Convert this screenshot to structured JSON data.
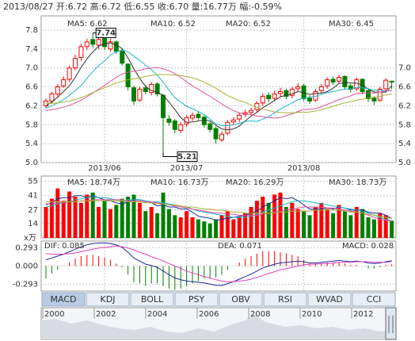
{
  "header": "2013/08/27 开:6.72 高:6.72 低:6.55 收:6.70 量:16.77万 幅:-0.59%",
  "chart_data": [
    {
      "type": "candlestick",
      "categories": [
        null,
        null,
        null,
        null,
        null,
        null,
        null,
        null,
        null,
        null,
        "2013/06",
        null,
        null,
        null,
        null,
        null,
        null,
        null,
        null,
        null,
        null,
        null,
        null,
        null,
        "2013/07",
        null,
        null,
        null,
        null,
        null,
        null,
        null,
        null,
        null,
        null,
        null,
        null,
        null,
        null,
        null,
        null,
        null,
        null,
        null,
        "2013/08",
        null,
        null,
        null,
        null,
        null,
        null,
        null,
        null,
        null,
        null,
        null,
        null,
        null,
        null,
        null
      ],
      "open": [
        6.2,
        6.3,
        6.45,
        6.62,
        6.76,
        7.0,
        7.22,
        7.45,
        7.6,
        7.48,
        7.62,
        7.4,
        7.55,
        7.35,
        7.08,
        6.58,
        6.32,
        6.58,
        6.48,
        6.66,
        6.42,
        5.92,
        5.88,
        5.68,
        5.82,
        5.94,
        6.02,
        5.96,
        5.82,
        5.72,
        5.48,
        5.62,
        5.86,
        5.92,
        6.02,
        6.06,
        6.12,
        6.26,
        6.42,
        6.36,
        6.46,
        6.52,
        6.42,
        6.56,
        6.62,
        6.36,
        6.32,
        6.52,
        6.62,
        6.76,
        6.72,
        6.82,
        6.62,
        6.56,
        6.76,
        6.52,
        6.36,
        6.32,
        6.56,
        6.72
      ],
      "high": [
        6.35,
        6.5,
        6.66,
        6.82,
        7.05,
        7.28,
        7.52,
        7.62,
        7.74,
        7.68,
        7.66,
        7.62,
        7.58,
        7.4,
        7.1,
        6.62,
        6.6,
        6.64,
        6.7,
        6.7,
        6.45,
        6.0,
        5.92,
        5.86,
        6.0,
        6.06,
        6.08,
        6.0,
        5.86,
        5.76,
        5.66,
        5.9,
        5.96,
        6.06,
        6.12,
        6.16,
        6.3,
        6.46,
        6.48,
        6.52,
        6.58,
        6.56,
        6.6,
        6.68,
        6.66,
        6.42,
        6.56,
        6.66,
        6.8,
        6.82,
        6.86,
        6.84,
        6.66,
        6.8,
        6.78,
        6.56,
        6.4,
        6.6,
        6.78,
        6.72
      ],
      "low": [
        6.15,
        6.25,
        6.4,
        6.58,
        6.7,
        6.95,
        7.15,
        7.38,
        7.42,
        7.4,
        7.38,
        7.35,
        7.3,
        7.05,
        6.52,
        6.22,
        6.28,
        6.44,
        6.42,
        6.4,
        5.21,
        5.78,
        5.62,
        5.62,
        5.76,
        5.88,
        5.9,
        5.74,
        5.64,
        5.4,
        5.44,
        5.58,
        5.8,
        5.86,
        5.96,
        6.0,
        6.06,
        6.2,
        6.28,
        6.3,
        6.4,
        6.34,
        6.36,
        6.5,
        6.3,
        6.24,
        6.28,
        6.46,
        6.56,
        6.64,
        6.66,
        6.54,
        6.48,
        6.52,
        6.44,
        6.28,
        6.22,
        6.28,
        6.5,
        6.55
      ],
      "close": [
        6.3,
        6.45,
        6.6,
        6.75,
        7.0,
        7.2,
        7.45,
        7.55,
        7.5,
        7.6,
        7.45,
        7.55,
        7.35,
        7.1,
        6.6,
        6.3,
        6.55,
        6.5,
        6.65,
        6.45,
        5.95,
        5.85,
        5.7,
        5.8,
        5.95,
        6.0,
        5.95,
        5.8,
        5.7,
        5.5,
        5.6,
        5.85,
        5.9,
        6.0,
        6.05,
        6.1,
        6.25,
        6.4,
        6.35,
        6.45,
        6.5,
        6.4,
        6.55,
        6.6,
        6.35,
        6.3,
        6.5,
        6.6,
        6.75,
        6.7,
        6.8,
        6.6,
        6.55,
        6.75,
        6.5,
        6.35,
        6.3,
        6.55,
        6.74,
        6.7
      ],
      "up_color": "#ff0000",
      "down_color": "#008000",
      "series": [
        {
          "name": "MA5: 6.62",
          "color": "#333333",
          "values": [
            6.2,
            6.28,
            6.38,
            6.5,
            6.62,
            6.8,
            7.01,
            7.19,
            7.34,
            7.46,
            7.51,
            7.53,
            7.49,
            7.41,
            7.21,
            6.98,
            6.78,
            6.61,
            6.52,
            6.49,
            6.42,
            6.28,
            6.12,
            5.95,
            5.85,
            5.86,
            5.88,
            5.9,
            5.88,
            5.79,
            5.71,
            5.69,
            5.71,
            5.77,
            5.88,
            5.98,
            6.06,
            6.16,
            6.23,
            6.31,
            6.39,
            6.42,
            6.45,
            6.5,
            6.48,
            6.44,
            6.46,
            6.47,
            6.5,
            6.57,
            6.67,
            6.69,
            6.68,
            6.68,
            6.64,
            6.55,
            6.49,
            6.49,
            6.49,
            6.62
          ]
        },
        {
          "name": "MA10: 6.52",
          "color": "#1cb5d0",
          "values": [
            6.15,
            6.2,
            6.26,
            6.33,
            6.42,
            6.52,
            6.63,
            6.78,
            6.92,
            7.05,
            7.15,
            7.27,
            7.34,
            7.38,
            7.34,
            7.25,
            7.16,
            7.06,
            6.96,
            6.85,
            6.7,
            6.53,
            6.37,
            6.28,
            6.19,
            6.14,
            6.08,
            6.01,
            5.92,
            5.82,
            5.78,
            5.78,
            5.8,
            5.83,
            5.87,
            5.88,
            5.87,
            5.92,
            5.97,
            6.05,
            6.13,
            6.2,
            6.26,
            6.33,
            6.36,
            6.38,
            6.4,
            6.44,
            6.48,
            6.5,
            6.53,
            6.55,
            6.56,
            6.59,
            6.58,
            6.56,
            6.53,
            6.53,
            6.52,
            6.52
          ]
        },
        {
          "name": "MA20: 6.52",
          "color": "#e0509a",
          "values": [
            6.1,
            6.12,
            6.14,
            6.17,
            6.21,
            6.26,
            6.32,
            6.39,
            6.47,
            6.55,
            6.63,
            6.72,
            6.8,
            6.87,
            6.91,
            6.93,
            6.95,
            6.98,
            7.0,
            7.01,
            6.98,
            6.94,
            6.88,
            6.8,
            6.71,
            6.62,
            6.55,
            6.47,
            6.4,
            6.32,
            6.24,
            6.16,
            6.1,
            6.05,
            6.03,
            6.01,
            5.98,
            5.97,
            5.95,
            5.94,
            5.95,
            5.99,
            6.03,
            6.08,
            6.12,
            6.13,
            6.14,
            6.18,
            6.23,
            6.28,
            6.33,
            6.37,
            6.41,
            6.46,
            6.47,
            6.47,
            6.47,
            6.49,
            6.51,
            6.52
          ]
        },
        {
          "name": "MA30: 6.45",
          "color": "#a8b030",
          "values": [
            6.25,
            6.25,
            6.26,
            6.28,
            6.3,
            6.33,
            6.37,
            6.42,
            6.48,
            6.53,
            6.58,
            6.63,
            6.68,
            6.72,
            6.75,
            6.77,
            6.79,
            6.82,
            6.84,
            6.86,
            6.86,
            6.86,
            6.85,
            6.84,
            6.82,
            6.79,
            6.75,
            6.7,
            6.64,
            6.57,
            6.49,
            6.42,
            6.36,
            6.31,
            6.27,
            6.22,
            6.17,
            6.13,
            6.1,
            6.07,
            6.06,
            6.05,
            6.05,
            6.06,
            6.06,
            6.07,
            6.09,
            6.12,
            6.15,
            6.19,
            6.23,
            6.26,
            6.29,
            6.32,
            6.34,
            6.36,
            6.38,
            6.4,
            6.43,
            6.45
          ]
        }
      ],
      "annotations": [
        {
          "value": 7.74,
          "label": "7.74"
        },
        {
          "value": 5.21,
          "label": "5.21"
        }
      ],
      "ylim": [
        5.0,
        8.1
      ],
      "yticks": [
        7.8,
        7.4,
        {
          "value": 7.0,
          "label": "7.0"
        },
        6.6,
        6.2,
        5.8,
        5.4,
        {
          "value": 5.0,
          "label": "5.0"
        }
      ],
      "y2lim": [
        5.0,
        8.1
      ],
      "y2ticks": [
        {
          "value": 7.0,
          "label": "7.0"
        },
        6.6,
        6.2,
        5.8,
        5.4,
        {
          "value": 5.0,
          "label": "5.0"
        }
      ],
      "grid": true
    },
    {
      "type": "bar",
      "ylabel": "x万",
      "values": [
        30,
        38,
        48,
        36,
        45,
        40,
        34,
        42,
        44,
        30,
        36,
        28,
        32,
        38,
        40,
        42,
        34,
        26,
        30,
        24,
        44,
        28,
        22,
        20,
        26,
        20,
        18,
        16,
        14,
        18,
        22,
        26,
        18,
        20,
        24,
        30,
        36,
        40,
        34,
        42,
        44,
        30,
        34,
        28,
        26,
        22,
        30,
        34,
        28,
        24,
        32,
        26,
        22,
        30,
        28,
        20,
        18,
        24,
        22,
        16.77
      ],
      "series": [
        {
          "name": "MA5: 18.74万",
          "color": "#1a2a9a",
          "values": [
            32,
            34,
            38,
            39,
            39,
            41,
            41,
            39,
            41,
            39,
            37,
            36,
            34,
            33,
            35,
            37,
            37,
            36,
            34,
            31,
            32,
            30,
            30,
            28,
            28,
            25,
            21,
            20,
            19,
            17,
            18,
            19,
            20,
            21,
            22,
            24,
            26,
            30,
            33,
            36,
            39,
            38,
            39,
            36,
            32,
            28,
            28,
            28,
            29,
            28,
            30,
            29,
            27,
            27,
            27,
            25,
            24,
            24,
            22,
            18.74
          ]
        },
        {
          "name": "MA10: 16.73万",
          "color": "#1cb5d0",
          "values": [
            30,
            31,
            33,
            34,
            35,
            37,
            38,
            39,
            40,
            39,
            39,
            38,
            37,
            36,
            37,
            37,
            37,
            36,
            35,
            35,
            34,
            33,
            32,
            31,
            30,
            28,
            26,
            25,
            24,
            23,
            22,
            21,
            20,
            20,
            20,
            21,
            23,
            25,
            27,
            29,
            31,
            33,
            35,
            36,
            36,
            35,
            34,
            33,
            32,
            31,
            30,
            29,
            28,
            27,
            26,
            24,
            22,
            20,
            18,
            16.73
          ]
        },
        {
          "name": "MA20: 16.29万",
          "color": "#e0509a",
          "values": [
            33,
            33,
            34,
            34,
            35,
            35,
            36,
            36,
            37,
            37,
            37,
            37,
            37,
            37,
            36,
            36,
            36,
            35,
            35,
            34,
            33,
            32,
            31,
            30,
            29,
            28,
            27,
            26,
            25,
            24,
            24,
            23,
            23,
            22,
            22,
            22,
            22,
            23,
            24,
            25,
            26,
            27,
            28,
            29,
            30,
            30,
            30,
            30,
            29,
            29,
            28,
            27,
            26,
            25,
            24,
            22,
            20,
            18,
            17,
            16.29
          ]
        },
        {
          "name": "MA30: 18.73万",
          "color": "#a8b030",
          "values": [
            35,
            35,
            35,
            35,
            35,
            35,
            36,
            36,
            36,
            36,
            36,
            36,
            36,
            36,
            35,
            35,
            35,
            34,
            34,
            33,
            33,
            32,
            32,
            31,
            30,
            30,
            29,
            28,
            28,
            27,
            27,
            26,
            25,
            25,
            24,
            24,
            24,
            24,
            24,
            24,
            25,
            25,
            26,
            26,
            26,
            26,
            27,
            27,
            27,
            27,
            27,
            26,
            25,
            25,
            24,
            23,
            22,
            21,
            20,
            18.73
          ]
        }
      ],
      "ylim": [
        0,
        60
      ],
      "yticks": [
        55,
        41,
        27,
        14
      ],
      "grid": true
    },
    {
      "type": "macd",
      "series": [
        {
          "name": "DIF: 0.085",
          "color": "#1a2a9a",
          "values": [
            0.1,
            0.13,
            0.16,
            0.19,
            0.23,
            0.27,
            0.31,
            0.34,
            0.36,
            0.37,
            0.37,
            0.36,
            0.34,
            0.3,
            0.22,
            0.13,
            0.08,
            0.03,
            0.01,
            -0.02,
            -0.08,
            -0.14,
            -0.19,
            -0.22,
            -0.24,
            -0.25,
            -0.26,
            -0.27,
            -0.29,
            -0.31,
            -0.31,
            -0.28,
            -0.25,
            -0.21,
            -0.17,
            -0.13,
            -0.08,
            -0.03,
            0.0,
            0.03,
            0.05,
            0.06,
            0.07,
            0.08,
            0.07,
            0.05,
            0.05,
            0.06,
            0.07,
            0.08,
            0.09,
            0.08,
            0.07,
            0.08,
            0.07,
            0.05,
            0.04,
            0.05,
            0.07,
            0.085
          ]
        },
        {
          "name": "DEA: 0.071",
          "color": "#e040c0",
          "values": [
            0.2,
            0.19,
            0.19,
            0.19,
            0.2,
            0.21,
            0.23,
            0.25,
            0.27,
            0.29,
            0.3,
            0.31,
            0.32,
            0.31,
            0.29,
            0.26,
            0.22,
            0.19,
            0.15,
            0.12,
            0.08,
            0.04,
            0.0,
            -0.04,
            -0.08,
            -0.11,
            -0.14,
            -0.17,
            -0.19,
            -0.22,
            -0.24,
            -0.25,
            -0.25,
            -0.24,
            -0.23,
            -0.21,
            -0.18,
            -0.15,
            -0.12,
            -0.09,
            -0.06,
            -0.04,
            -0.02,
            0.0,
            0.02,
            0.03,
            0.03,
            0.04,
            0.04,
            0.05,
            0.06,
            0.06,
            0.06,
            0.07,
            0.07,
            0.07,
            0.06,
            0.06,
            0.06,
            0.071
          ]
        }
      ],
      "histogram": {
        "name": "MACD: 0.028",
        "up_color": "#ff0000",
        "down_color": "#008000",
        "values": [
          -0.2,
          -0.12,
          -0.06,
          0.0,
          0.06,
          0.12,
          0.16,
          0.18,
          0.18,
          0.16,
          0.14,
          0.1,
          0.04,
          -0.02,
          -0.14,
          -0.26,
          -0.28,
          -0.32,
          -0.28,
          -0.28,
          -0.32,
          -0.36,
          -0.38,
          -0.36,
          -0.32,
          -0.28,
          -0.24,
          -0.2,
          -0.2,
          -0.18,
          -0.14,
          -0.06,
          0.0,
          0.06,
          0.12,
          0.16,
          0.2,
          0.24,
          0.24,
          0.24,
          0.22,
          0.2,
          0.18,
          0.16,
          0.1,
          0.04,
          0.04,
          0.04,
          0.06,
          0.06,
          0.06,
          0.04,
          0.02,
          0.02,
          0.0,
          -0.04,
          -0.04,
          -0.02,
          0.02,
          0.028
        ]
      },
      "ylim": [
        -0.4,
        0.4
      ],
      "yticks": [
        0.293,
        {
          "value": 0,
          "label": "0.000"
        },
        -0.293
      ],
      "grid": true
    }
  ],
  "tabs": [
    "MACD",
    "KDJ",
    "BOLL",
    "PSY",
    "OBV",
    "RSI",
    "WVAD",
    "CCI"
  ],
  "timeline": {
    "years": [
      "2000",
      "2002",
      "2004",
      "2006",
      "2008",
      "2010",
      "2012"
    ]
  }
}
